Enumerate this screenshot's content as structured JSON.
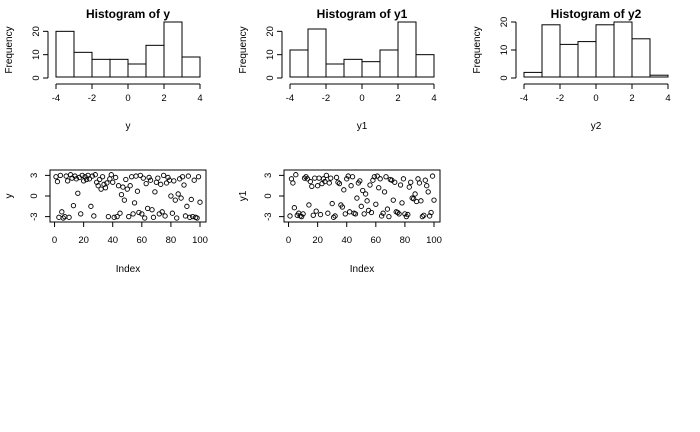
{
  "chart_data": [
    {
      "type": "bar",
      "title": "Histogram of y",
      "xlabel": "y",
      "ylabel": "Frequency",
      "breaks": [
        -4,
        -3,
        -2,
        -1,
        0,
        1,
        2,
        3,
        4
      ],
      "values": [
        20,
        11,
        8,
        8,
        6,
        14,
        24,
        9
      ],
      "xlim": [
        -4,
        4
      ],
      "ylim": [
        0,
        24
      ],
      "xticks": [
        "-4",
        "-2",
        "0",
        "2",
        "4"
      ],
      "yticks": [
        "0",
        "10",
        "20"
      ]
    },
    {
      "type": "bar",
      "title": "Histogram of y1",
      "xlabel": "y1",
      "ylabel": "Frequency",
      "breaks": [
        -4,
        -3,
        -2,
        -1,
        0,
        1,
        2,
        3,
        4
      ],
      "values": [
        12,
        21,
        6,
        8,
        7,
        12,
        24,
        10
      ],
      "xlim": [
        -4,
        4
      ],
      "ylim": [
        0,
        24
      ],
      "xticks": [
        "-4",
        "-2",
        "0",
        "2",
        "4"
      ],
      "yticks": [
        "0",
        "10",
        "20"
      ]
    },
    {
      "type": "bar",
      "title": "Histogram of y2",
      "xlabel": "y2",
      "ylabel": "Frequency",
      "breaks": [
        -4,
        -3,
        -2,
        -1,
        0,
        1,
        2,
        3,
        4
      ],
      "values": [
        2,
        19,
        12,
        13,
        19,
        20,
        14,
        1
      ],
      "xlim": [
        -4,
        4
      ],
      "ylim": [
        0,
        20
      ],
      "xticks": [
        "-4",
        "-2",
        "0",
        "2",
        "4"
      ],
      "yticks": [
        "0",
        "10",
        "20"
      ]
    },
    {
      "type": "scatter",
      "xlabel": "Index",
      "ylabel": "y",
      "xlim": [
        1,
        100
      ],
      "ylim": [
        -3.2,
        3.2
      ],
      "xticks": [
        "0",
        "20",
        "40",
        "60",
        "80",
        "100"
      ],
      "yticks": [
        "-3",
        "0",
        "3"
      ],
      "x": [
        1,
        2,
        3,
        4,
        5,
        6,
        7,
        8,
        9,
        10,
        11,
        12,
        13,
        14,
        15,
        16,
        17,
        18,
        19,
        20,
        21,
        22,
        23,
        24,
        25,
        26,
        27,
        28,
        29,
        30,
        31,
        32,
        33,
        34,
        35,
        36,
        37,
        38,
        39,
        40,
        41,
        42,
        43,
        44,
        45,
        46,
        47,
        48,
        49,
        50,
        51,
        52,
        53,
        54,
        55,
        56,
        57,
        58,
        59,
        60,
        61,
        62,
        63,
        64,
        65,
        66,
        67,
        68,
        69,
        70,
        71,
        72,
        73,
        74,
        75,
        76,
        77,
        78,
        79,
        80,
        81,
        82,
        83,
        84,
        85,
        86,
        87,
        88,
        89,
        90,
        91,
        92,
        93,
        94,
        95,
        96,
        97,
        98,
        99,
        100
      ],
      "y": [
        2.8,
        2.1,
        -3.1,
        3.0,
        -2.3,
        -3.2,
        -3.0,
        2.9,
        2.2,
        -3.1,
        3.1,
        2.6,
        -1.4,
        2.9,
        2.5,
        0.4,
        2.7,
        -2.6,
        3.0,
        2.2,
        2.8,
        2.4,
        3.0,
        2.5,
        -1.5,
        2.9,
        -2.9,
        3.1,
        2.0,
        1.5,
        2.4,
        1.0,
        2.8,
        1.7,
        1.2,
        1.9,
        -3.0,
        2.5,
        3.1,
        2.0,
        -3.1,
        2.7,
        -3.0,
        1.5,
        -2.5,
        0.2,
        1.3,
        -0.6,
        2.4,
        1.0,
        -3.0,
        1.5,
        2.8,
        -2.6,
        -1.0,
        2.9,
        0.7,
        -2.4,
        3.0,
        -2.6,
        2.6,
        -3.2,
        1.8,
        -1.8,
        2.7,
        2.3,
        -2.0,
        -3.1,
        0.6,
        2.0,
        2.6,
        -2.6,
        1.7,
        -2.3,
        3.0,
        -2.9,
        1.9,
        2.7,
        2.3,
        0.0,
        -2.5,
        2.2,
        -0.6,
        -3.2,
        0.3,
        2.5,
        -0.3,
        2.8,
        1.6,
        -2.9,
        -1.5,
        2.9,
        -3.1,
        -0.5,
        -3.0,
        2.3,
        -3.1,
        -3.2,
        2.8,
        -0.9
      ]
    },
    {
      "type": "scatter",
      "xlabel": "Index",
      "ylabel": "y1",
      "xlim": [
        1,
        100
      ],
      "ylim": [
        -3.2,
        3.2
      ],
      "xticks": [
        "0",
        "20",
        "40",
        "60",
        "80",
        "100"
      ],
      "yticks": [
        "-3",
        "0",
        "3"
      ],
      "x": [
        1,
        2,
        3,
        4,
        5,
        6,
        7,
        8,
        9,
        10,
        11,
        12,
        13,
        14,
        15,
        16,
        17,
        18,
        19,
        20,
        21,
        22,
        23,
        24,
        25,
        26,
        27,
        28,
        29,
        30,
        31,
        32,
        33,
        34,
        35,
        36,
        37,
        38,
        39,
        40,
        41,
        42,
        43,
        44,
        45,
        46,
        47,
        48,
        49,
        50,
        51,
        52,
        53,
        54,
        55,
        56,
        57,
        58,
        59,
        60,
        61,
        62,
        63,
        64,
        65,
        66,
        67,
        68,
        69,
        70,
        71,
        72,
        73,
        74,
        75,
        76,
        77,
        78,
        79,
        80,
        81,
        82,
        83,
        84,
        85,
        86,
        87,
        88,
        89,
        90,
        91,
        92,
        93,
        94,
        95,
        96,
        97,
        98,
        99,
        100
      ],
      "y": [
        -2.9,
        2.5,
        1.9,
        -1.7,
        3.1,
        -2.8,
        -2.5,
        -2.9,
        -3.0,
        -2.6,
        2.6,
        2.8,
        2.5,
        -1.3,
        2.1,
        1.4,
        -2.8,
        2.6,
        -2.2,
        1.5,
        2.6,
        -2.7,
        1.8,
        2.5,
        2.1,
        3.0,
        -2.5,
        1.9,
        2.6,
        -1.1,
        -3.1,
        -2.9,
        2.7,
        2.0,
        1.8,
        -1.3,
        -1.6,
        0.9,
        -2.6,
        2.5,
        2.9,
        -2.3,
        1.5,
        2.8,
        -2.5,
        -2.6,
        -0.3,
        1.9,
        2.2,
        -1.5,
        0.8,
        -2.6,
        0.3,
        -0.7,
        -2.1,
        1.6,
        -2.4,
        2.3,
        2.8,
        -1.2,
        2.9,
        1.2,
        2.5,
        -2.9,
        -2.5,
        0.6,
        2.8,
        -1.9,
        -3.0,
        2.4,
        2.3,
        -0.6,
        2.0,
        -2.3,
        -2.4,
        -2.6,
        1.6,
        -1.0,
        2.5,
        -2.6,
        -3.0,
        -2.7,
        1.3,
        2.0,
        -0.3,
        -0.4,
        0.3,
        -0.8,
        2.5,
        1.9,
        -0.7,
        -3.0,
        -2.8,
        2.3,
        1.5,
        0.6,
        -2.9,
        -2.4,
        2.9,
        -0.6
      ]
    }
  ]
}
